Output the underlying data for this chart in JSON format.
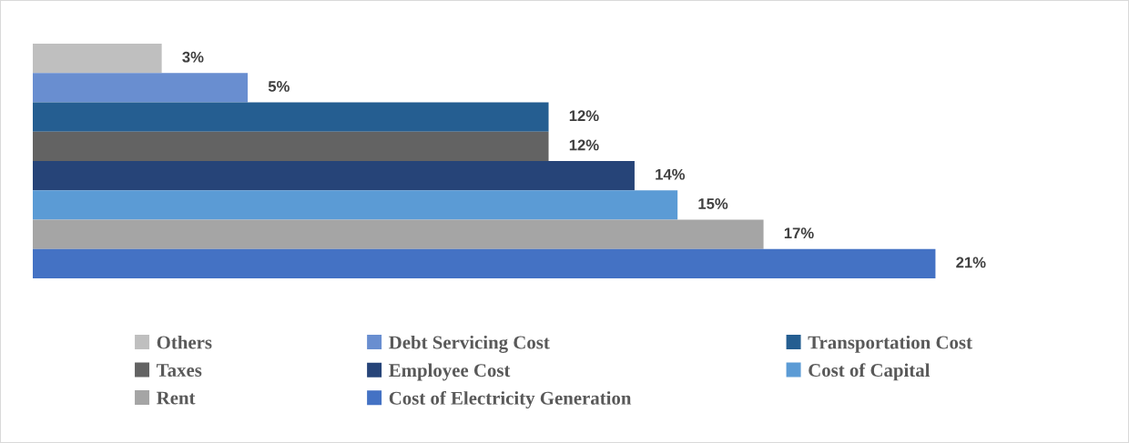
{
  "chart_data": {
    "type": "bar",
    "orientation": "horizontal",
    "tick_labels": false,
    "grid": false,
    "legend": "bottom",
    "categories": [
      null
    ],
    "series": [
      {
        "name": "Others",
        "color": "#bfbfbf",
        "values": [
          3
        ],
        "value_labels": [
          "3%"
        ]
      },
      {
        "name": "Debt Servicing Cost",
        "color": "#698ed0",
        "values": [
          5
        ],
        "value_labels": [
          "5%"
        ]
      },
      {
        "name": "Transportation Cost",
        "color": "#255e91",
        "values": [
          12
        ],
        "value_labels": [
          "12%"
        ]
      },
      {
        "name": "Taxes",
        "color": "#636363",
        "values": [
          12
        ],
        "value_labels": [
          "12%"
        ]
      },
      {
        "name": "Employee Cost",
        "color": "#264478",
        "values": [
          14
        ],
        "value_labels": [
          "14%"
        ]
      },
      {
        "name": "Cost of Capital",
        "color": "#5b9bd5",
        "values": [
          15
        ],
        "value_labels": [
          "15%"
        ]
      },
      {
        "name": "Rent",
        "color": "#a5a5a5",
        "values": [
          17
        ],
        "value_labels": [
          "17%"
        ]
      },
      {
        "name": "Cost of Electricity Generation",
        "color": "#4472c4",
        "values": [
          21
        ],
        "value_labels": [
          "21%"
        ]
      }
    ]
  }
}
